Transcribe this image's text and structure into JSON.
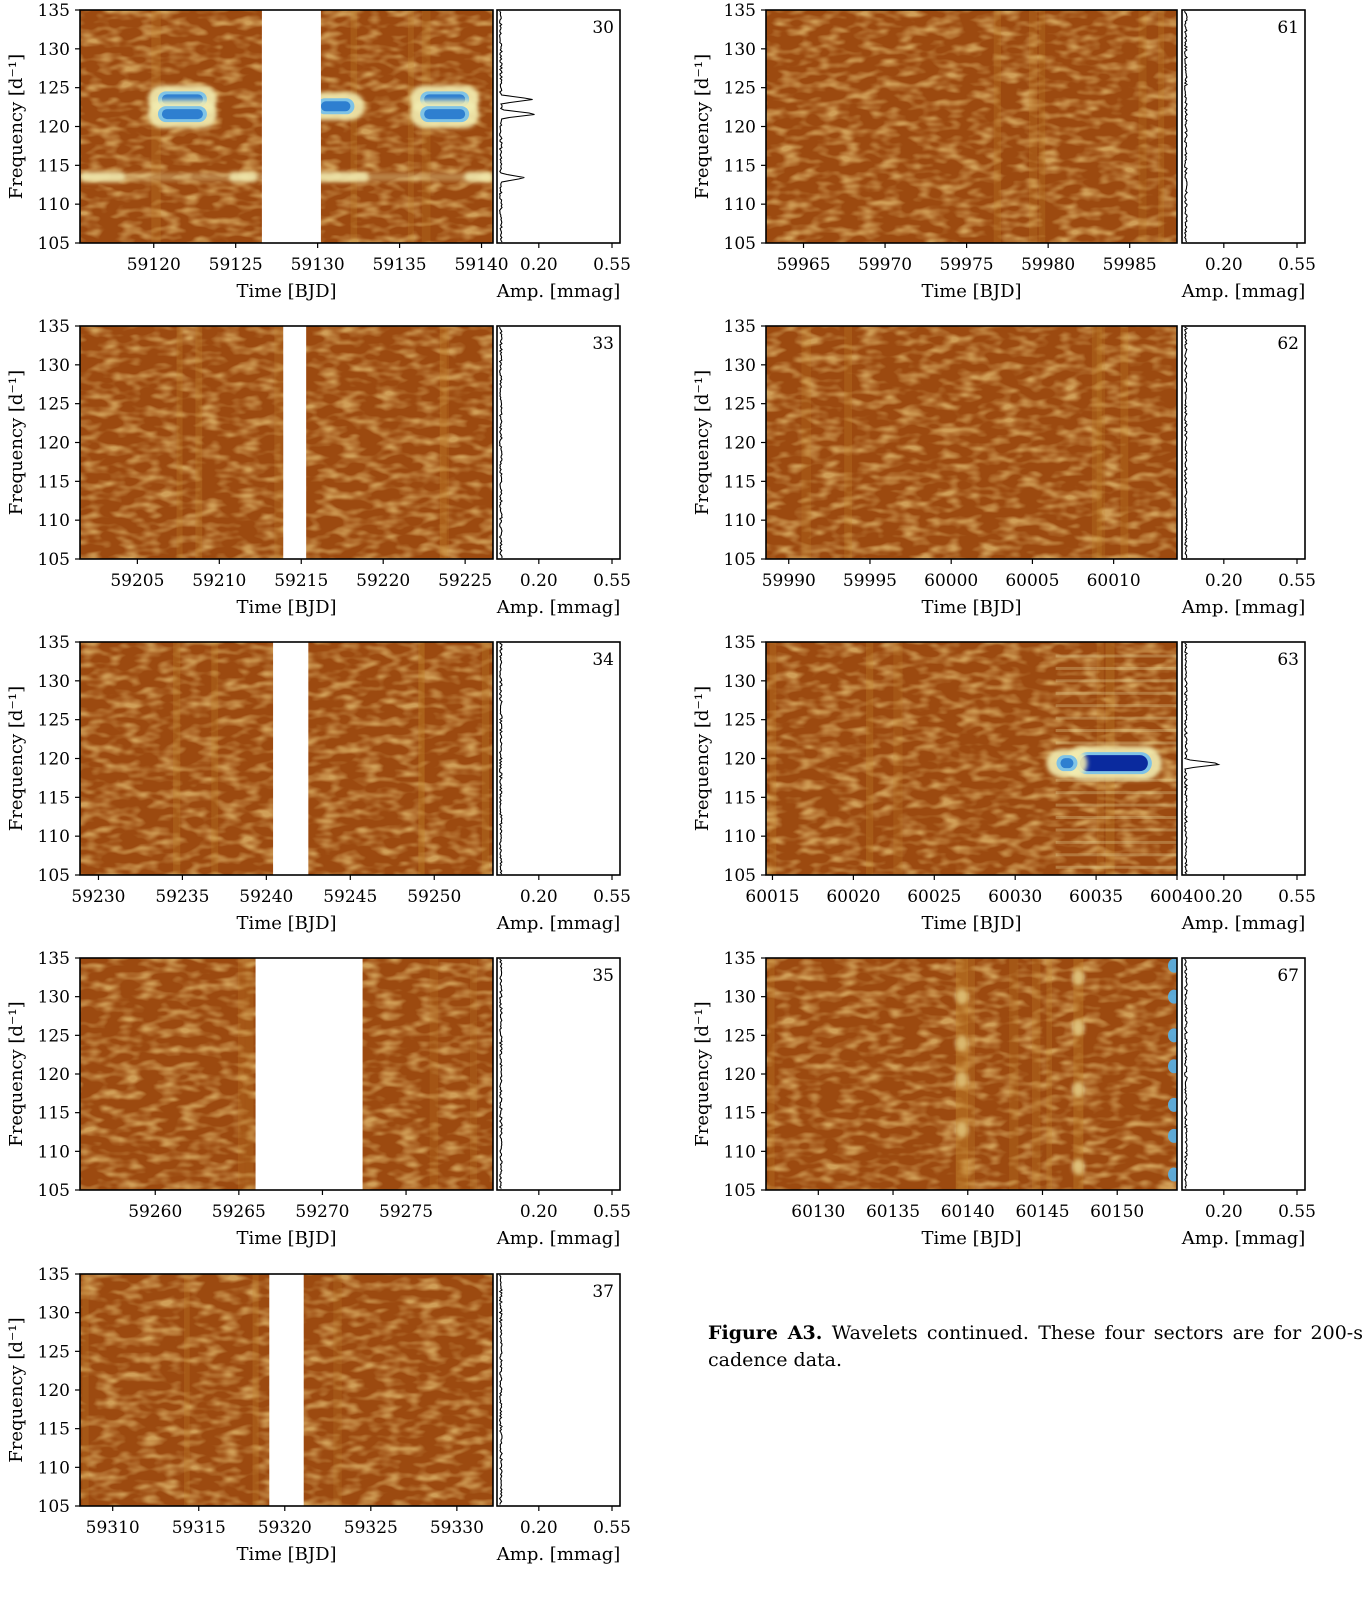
{
  "caption": {
    "label": "Figure A3.",
    "text": "Wavelets continued. These four sectors are for 200-s cadence data."
  },
  "colors": {
    "background_low": "#9c4a10",
    "mid": "#c5882f",
    "high": "#f2ecb0",
    "peak": "#2e7fd0",
    "peak_max": "#0a2a9e",
    "gap": "#ffffff"
  },
  "chart_data": [
    {
      "type": "heatmap",
      "sector": "30",
      "xlabel": "Time [BJD]",
      "ylabel": "Frequency [d⁻¹]",
      "xlim": [
        59115.5,
        59140.7
      ],
      "ylim": [
        105,
        135
      ],
      "xticks": [
        59120,
        59125,
        59130,
        59135,
        59140
      ],
      "yticks": [
        105,
        110,
        115,
        120,
        125,
        130,
        135
      ],
      "gap": [
        59126.6,
        59130.2
      ],
      "amp_xlabel": "Amp. [mmag]",
      "amp_ticks": [
        "0.20",
        "0.55"
      ],
      "peaks": [
        {
          "t": [
            59120.5,
            59123.0
          ],
          "f": 123.5
        },
        {
          "t": [
            59120.5,
            59123.0
          ],
          "f": 121.6
        },
        {
          "t": [
            59130.2,
            59132.0
          ],
          "f": 122.6
        },
        {
          "t": [
            59136.5,
            59139.0
          ],
          "f": 123.5
        },
        {
          "t": [
            59136.5,
            59139.0
          ],
          "f": 121.6
        }
      ],
      "bright_rows": [
        113.5
      ],
      "spectrum_peaks": [
        {
          "f": 123.5,
          "amp": 0.17
        },
        {
          "f": 121.6,
          "amp": 0.19
        },
        {
          "f": 113.4,
          "amp": 0.13
        }
      ]
    },
    {
      "type": "heatmap",
      "sector": "33",
      "xlabel": "Time [BJD]",
      "ylabel": "Frequency [d⁻¹]",
      "xlim": [
        59201.5,
        59226.7
      ],
      "ylim": [
        105,
        135
      ],
      "xticks": [
        59205,
        59210,
        59215,
        59220,
        59225
      ],
      "yticks": [
        105,
        110,
        115,
        120,
        125,
        130,
        135
      ],
      "gap": [
        59213.9,
        59215.3
      ],
      "amp_xlabel": "Amp. [mmag]",
      "amp_ticks": [
        "0.20",
        "0.55"
      ],
      "peaks": [],
      "bright_rows": [],
      "spectrum_peaks": []
    },
    {
      "type": "heatmap",
      "sector": "34",
      "xlabel": "Time [BJD]",
      "ylabel": "Frequency [d⁻¹]",
      "xlim": [
        59228.9,
        59253.5
      ],
      "ylim": [
        105,
        135
      ],
      "xticks": [
        59230,
        59235,
        59240,
        59245,
        59250
      ],
      "yticks": [
        105,
        110,
        115,
        120,
        125,
        130,
        135
      ],
      "gap": [
        59240.4,
        59242.5
      ],
      "amp_xlabel": "Amp. [mmag]",
      "amp_ticks": [
        "0.20",
        "0.55"
      ],
      "peaks": [],
      "bright_rows": [],
      "spectrum_peaks": []
    },
    {
      "type": "heatmap",
      "sector": "35",
      "xlabel": "Time [BJD]",
      "ylabel": "Frequency [d⁻¹]",
      "xlim": [
        59255.5,
        59280.2
      ],
      "ylim": [
        105,
        135
      ],
      "xticks": [
        59260,
        59265,
        59270,
        59275
      ],
      "yticks": [
        105,
        110,
        115,
        120,
        125,
        130,
        135
      ],
      "gap": [
        59266.0,
        59272.4
      ],
      "amp_xlabel": "Amp. [mmag]",
      "amp_ticks": [
        "0.20",
        "0.55"
      ],
      "peaks": [],
      "bright_rows": [],
      "spectrum_peaks": []
    },
    {
      "type": "heatmap",
      "sector": "37",
      "xlabel": "Time [BJD]",
      "ylabel": "Frequency [d⁻¹]",
      "xlim": [
        59308.1,
        59332.1
      ],
      "ylim": [
        105,
        135
      ],
      "xticks": [
        59310,
        59315,
        59320,
        59325,
        59330
      ],
      "yticks": [
        105,
        110,
        115,
        120,
        125,
        130,
        135
      ],
      "gap": [
        59319.1,
        59321.1
      ],
      "amp_xlabel": "Amp. [mmag]",
      "amp_ticks": [
        "0.20",
        "0.55"
      ],
      "peaks": [],
      "bright_rows": [],
      "spectrum_peaks": []
    },
    {
      "type": "heatmap",
      "sector": "61",
      "xlabel": "Time [BJD]",
      "ylabel": "Frequency [d⁻¹]",
      "xlim": [
        59962.7,
        59987.9
      ],
      "ylim": [
        105,
        135
      ],
      "xticks": [
        59965,
        59970,
        59975,
        59980,
        59985
      ],
      "yticks": [
        105,
        110,
        115,
        120,
        125,
        130,
        135
      ],
      "gap": null,
      "amp_xlabel": "Amp. [mmag]",
      "amp_ticks": [
        "0.20",
        "0.55"
      ],
      "peaks": [],
      "bright_rows": [],
      "spectrum_peaks": []
    },
    {
      "type": "heatmap",
      "sector": "62",
      "xlabel": "Time [BJD]",
      "ylabel": "Frequency [d⁻¹]",
      "xlim": [
        59988.6,
        60013.9
      ],
      "ylim": [
        105,
        135
      ],
      "xticks": [
        59990,
        59995,
        60000,
        60005,
        60010
      ],
      "yticks": [
        105,
        110,
        115,
        120,
        125,
        130,
        135
      ],
      "gap": null,
      "amp_xlabel": "Amp. [mmag]",
      "amp_ticks": [
        "0.20",
        "0.55"
      ],
      "peaks": [],
      "bright_rows": [],
      "spectrum_peaks": []
    },
    {
      "type": "heatmap",
      "sector": "63",
      "xlabel": "Time [BJD]",
      "ylabel": "Frequency [d⁻¹]",
      "xlim": [
        60014.6,
        60040.0
      ],
      "ylim": [
        105,
        135
      ],
      "xticks": [
        60015,
        60020,
        60025,
        60030,
        60035,
        60040
      ],
      "yticks": [
        105,
        110,
        115,
        120,
        125,
        130,
        135
      ],
      "gap": null,
      "amp_xlabel": "Amp. [mmag]",
      "amp_ticks": [
        "0.20",
        "0.55"
      ],
      "peaks": [
        {
          "t": [
            60034.0,
            60038.2
          ],
          "f": 119.4
        },
        {
          "t": [
            60032.8,
            60033.6
          ],
          "f": 119.4
        }
      ],
      "bright_rows": [],
      "spectrum_peaks": [
        {
          "f": 119.3,
          "amp": 0.19
        }
      ]
    },
    {
      "type": "heatmap",
      "sector": "67",
      "xlabel": "Time [BJD]",
      "ylabel": "Frequency [d⁻¹]",
      "xlim": [
        60126.5,
        60154.0
      ],
      "ylim": [
        105,
        135
      ],
      "xticks": [
        60130,
        60135,
        60140,
        60145,
        60150
      ],
      "yticks": [
        105,
        110,
        115,
        120,
        125,
        130,
        135
      ],
      "gap": null,
      "amp_xlabel": "Amp. [mmag]",
      "amp_ticks": [
        "0.20",
        "0.55"
      ],
      "peaks": [],
      "bright_rows": [],
      "spectrum_peaks": []
    }
  ]
}
